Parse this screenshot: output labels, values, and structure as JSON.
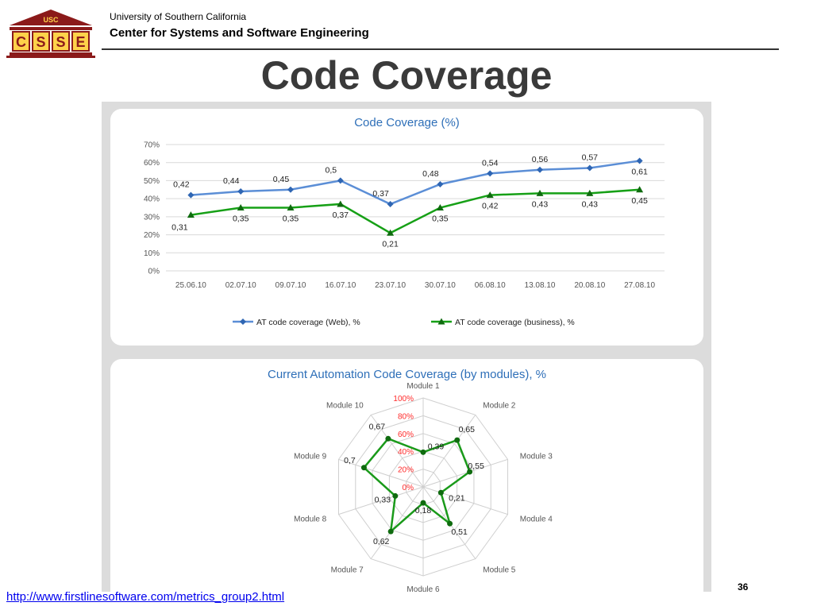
{
  "header": {
    "university": "University of Southern California",
    "center": "Center for Systems and Software Engineering",
    "logo_top": "USC",
    "logo_letters": [
      "C",
      "S",
      "S",
      "E"
    ]
  },
  "slide": {
    "title": "Code Coverage",
    "page_number": "36",
    "source_link": "http://www.firstlinesoftware.com/metrics_group2.html"
  },
  "colors": {
    "web_line": "#5b8ed6",
    "web_marker": "#2f66b3",
    "business_line": "#16a016",
    "business_marker": "#0f6b0f",
    "radar_line": "#1a9a1a",
    "radar_ticks": "#ff2a2a",
    "title_blue": "#2e6fb8"
  },
  "chart_data": [
    {
      "type": "line",
      "title": "Code Coverage (%)",
      "x": [
        "25.06.10",
        "02.07.10",
        "09.07.10",
        "16.07.10",
        "23.07.10",
        "30.07.10",
        "06.08.10",
        "13.08.10",
        "20.08.10",
        "27.08.10"
      ],
      "y_ticks": [
        "0%",
        "10%",
        "20%",
        "30%",
        "40%",
        "50%",
        "60%",
        "70%"
      ],
      "ylim": [
        0,
        0.7
      ],
      "grid": true,
      "legend": "bottom",
      "series": [
        {
          "name": "AT code coverage (Web), %",
          "values": [
            0.42,
            0.44,
            0.45,
            0.5,
            0.37,
            0.48,
            0.54,
            0.56,
            0.57,
            0.61
          ],
          "labels": [
            "0,42",
            "0,44",
            "0,45",
            "0,5",
            "0,37",
            "0,48",
            "0,54",
            "0,56",
            "0,57",
            "0,61"
          ],
          "marker": "diamond"
        },
        {
          "name": "AT code coverage (business), %",
          "values": [
            0.31,
            0.35,
            0.35,
            0.37,
            0.21,
            0.35,
            0.42,
            0.43,
            0.43,
            0.45
          ],
          "labels": [
            "0,31",
            "0,35",
            "0,35",
            "0,37",
            "0,21",
            "0,35",
            "0,42",
            "0,43",
            "0,43",
            "0,45"
          ],
          "marker": "triangle"
        }
      ]
    },
    {
      "type": "radar",
      "title": "Current Automation Code Coverage (by modules), %",
      "categories": [
        "Module 1",
        "Module 2",
        "Module 3",
        "Module 4",
        "Module 5",
        "Module 6",
        "Module 7",
        "Module 8",
        "Module 9",
        "Module 10"
      ],
      "values": [
        0.39,
        0.65,
        0.55,
        0.21,
        0.51,
        0.18,
        0.62,
        0.33,
        0.7,
        0.67
      ],
      "labels": [
        "0,39",
        "0,65",
        "0,55",
        "0,21",
        "0,51",
        "0,18",
        "0,62",
        "0,33",
        "0,7",
        "0,67"
      ],
      "r_ticks": [
        "0%",
        "20%",
        "40%",
        "60%",
        "80%",
        "100%"
      ],
      "rlim": [
        0,
        1
      ],
      "grid": true
    }
  ]
}
